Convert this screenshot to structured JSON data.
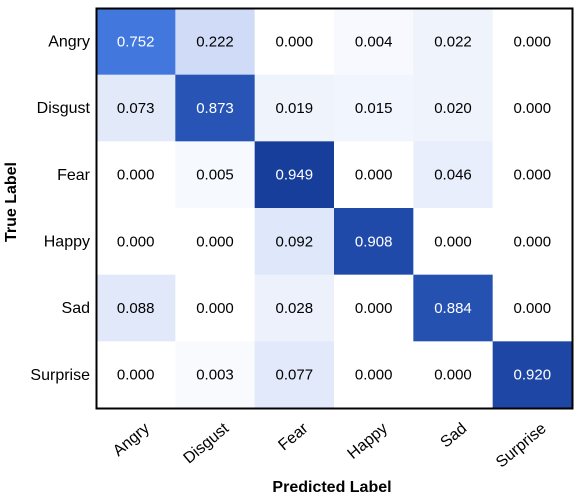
{
  "chart_data": {
    "type": "heatmap",
    "xlabel": "Predicted Label",
    "ylabel": "True Label",
    "x_categories": [
      "Angry",
      "Disgust",
      "Fear",
      "Happy",
      "Sad",
      "Surprise"
    ],
    "y_categories": [
      "Angry",
      "Disgust",
      "Fear",
      "Happy",
      "Sad",
      "Surprise"
    ],
    "values": [
      [
        "0.752",
        "0.222",
        "0.000",
        "0.004",
        "0.022",
        "0.000"
      ],
      [
        "0.073",
        "0.873",
        "0.019",
        "0.015",
        "0.020",
        "0.000"
      ],
      [
        "0.000",
        "0.005",
        "0.949",
        "0.000",
        "0.046",
        "0.000"
      ],
      [
        "0.000",
        "0.000",
        "0.092",
        "0.908",
        "0.000",
        "0.000"
      ],
      [
        "0.088",
        "0.000",
        "0.028",
        "0.000",
        "0.884",
        "0.000"
      ],
      [
        "0.000",
        "0.003",
        "0.077",
        "0.000",
        "0.000",
        "0.920"
      ]
    ],
    "colormap": {
      "low": "#ffffff",
      "high": "#0c2f8a"
    }
  }
}
